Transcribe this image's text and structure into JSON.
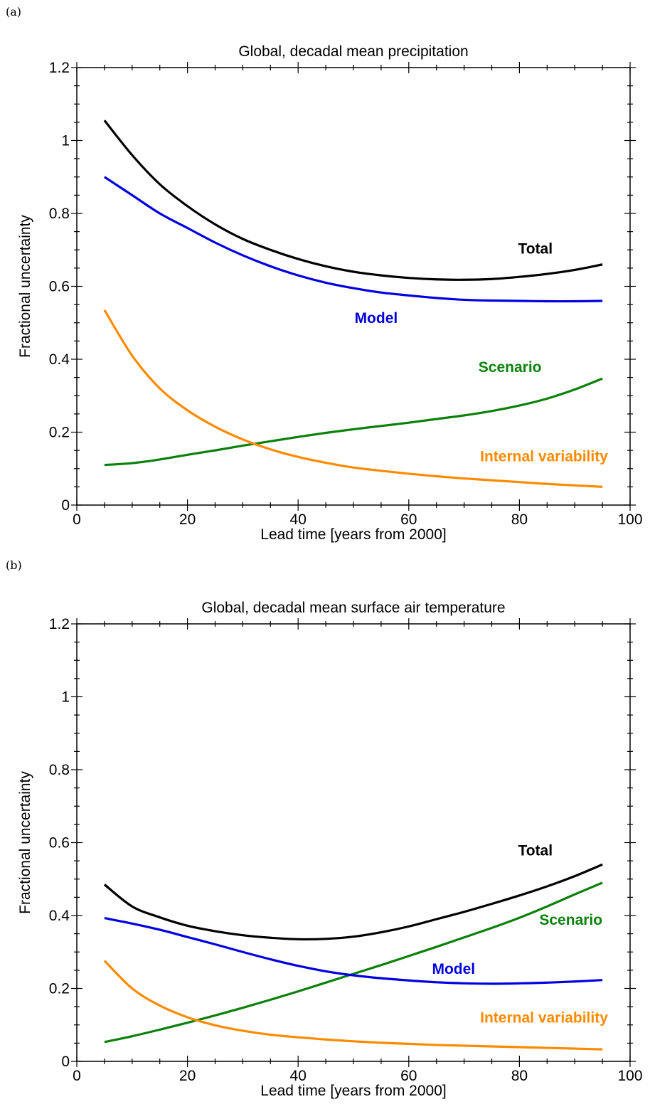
{
  "chart_data": [
    {
      "type": "line",
      "panel_label": "(a)",
      "title": "Global, decadal mean precipitation",
      "xlabel": "Lead time  [years from 2000]",
      "ylabel": "Fractional uncertainty",
      "xlim": [
        0,
        100
      ],
      "ylim": [
        0,
        1.2
      ],
      "xticks": [
        0,
        20,
        40,
        60,
        80,
        100
      ],
      "xtick_labels": [
        "0",
        "20",
        "40",
        "60",
        "80",
        "100"
      ],
      "yticks": [
        0,
        0.2,
        0.4,
        0.6,
        0.8,
        1,
        1.2
      ],
      "ytick_labels": [
        "0",
        "0.2",
        "0.4",
        "0.6",
        "0.8",
        "1",
        "1.2"
      ],
      "grid": false,
      "x": [
        5,
        10,
        15,
        20,
        25,
        30,
        35,
        40,
        45,
        50,
        55,
        60,
        65,
        70,
        75,
        80,
        85,
        90,
        95
      ],
      "series": [
        {
          "name": "Total",
          "color": "#000000",
          "label_at": [
            86,
            0.69
          ],
          "values": [
            1.055,
            0.96,
            0.88,
            0.82,
            0.77,
            0.73,
            0.7,
            0.675,
            0.655,
            0.64,
            0.63,
            0.623,
            0.619,
            0.618,
            0.62,
            0.626,
            0.634,
            0.645,
            0.66
          ]
        },
        {
          "name": "Model",
          "color": "#0000e0",
          "label_at": [
            58,
            0.5
          ],
          "values": [
            0.9,
            0.85,
            0.8,
            0.76,
            0.72,
            0.685,
            0.655,
            0.63,
            0.61,
            0.595,
            0.583,
            0.575,
            0.568,
            0.563,
            0.561,
            0.56,
            0.559,
            0.559,
            0.56
          ]
        },
        {
          "name": "Scenario",
          "color": "#0a800a",
          "label_at": [
            84,
            0.365
          ],
          "values": [
            0.11,
            0.115,
            0.125,
            0.138,
            0.15,
            0.163,
            0.175,
            0.187,
            0.198,
            0.208,
            0.217,
            0.226,
            0.236,
            0.246,
            0.258,
            0.273,
            0.292,
            0.317,
            0.347
          ]
        },
        {
          "name": "Internal variability",
          "color": "#ff8a00",
          "label_at": [
            96,
            0.12
          ],
          "values": [
            0.535,
            0.41,
            0.32,
            0.26,
            0.215,
            0.18,
            0.153,
            0.132,
            0.116,
            0.103,
            0.094,
            0.086,
            0.079,
            0.073,
            0.068,
            0.063,
            0.058,
            0.054,
            0.05
          ]
        }
      ]
    },
    {
      "type": "line",
      "panel_label": "(b)",
      "title": "Global, decadal mean surface air temperature",
      "xlabel": "Lead time  [years from 2000]",
      "ylabel": "Fractional uncertainty",
      "xlim": [
        0,
        100
      ],
      "ylim": [
        0,
        1.2
      ],
      "xticks": [
        0,
        20,
        40,
        60,
        80,
        100
      ],
      "xtick_labels": [
        "0",
        "20",
        "40",
        "60",
        "80",
        "100"
      ],
      "yticks": [
        0,
        0.2,
        0.4,
        0.6,
        0.8,
        1,
        1.2
      ],
      "ytick_labels": [
        "0",
        "0.2",
        "0.4",
        "0.6",
        "0.8",
        "1",
        "1.2"
      ],
      "grid": false,
      "x": [
        5,
        10,
        15,
        20,
        25,
        30,
        35,
        40,
        45,
        50,
        55,
        60,
        65,
        70,
        75,
        80,
        85,
        90,
        95
      ],
      "series": [
        {
          "name": "Total",
          "color": "#000000",
          "label_at": [
            86,
            0.565
          ],
          "values": [
            0.485,
            0.425,
            0.395,
            0.372,
            0.357,
            0.346,
            0.339,
            0.335,
            0.336,
            0.342,
            0.354,
            0.37,
            0.39,
            0.41,
            0.432,
            0.455,
            0.48,
            0.508,
            0.54
          ]
        },
        {
          "name": "Scenario",
          "color": "#0a800a",
          "label_at": [
            95,
            0.375
          ],
          "values": [
            0.053,
            0.069,
            0.087,
            0.106,
            0.126,
            0.147,
            0.169,
            0.192,
            0.216,
            0.24,
            0.264,
            0.289,
            0.314,
            0.34,
            0.366,
            0.394,
            0.425,
            0.458,
            0.49
          ]
        },
        {
          "name": "Model",
          "color": "#0000e0",
          "label_at": [
            72,
            0.24
          ],
          "values": [
            0.393,
            0.378,
            0.361,
            0.341,
            0.321,
            0.3,
            0.28,
            0.262,
            0.247,
            0.236,
            0.228,
            0.222,
            0.217,
            0.214,
            0.213,
            0.214,
            0.216,
            0.219,
            0.223
          ]
        },
        {
          "name": "Internal variability",
          "color": "#ff8a00",
          "label_at": [
            96,
            0.106
          ],
          "values": [
            0.276,
            0.2,
            0.153,
            0.121,
            0.099,
            0.084,
            0.073,
            0.066,
            0.06,
            0.055,
            0.051,
            0.048,
            0.045,
            0.043,
            0.041,
            0.039,
            0.037,
            0.035,
            0.033
          ]
        }
      ]
    }
  ]
}
